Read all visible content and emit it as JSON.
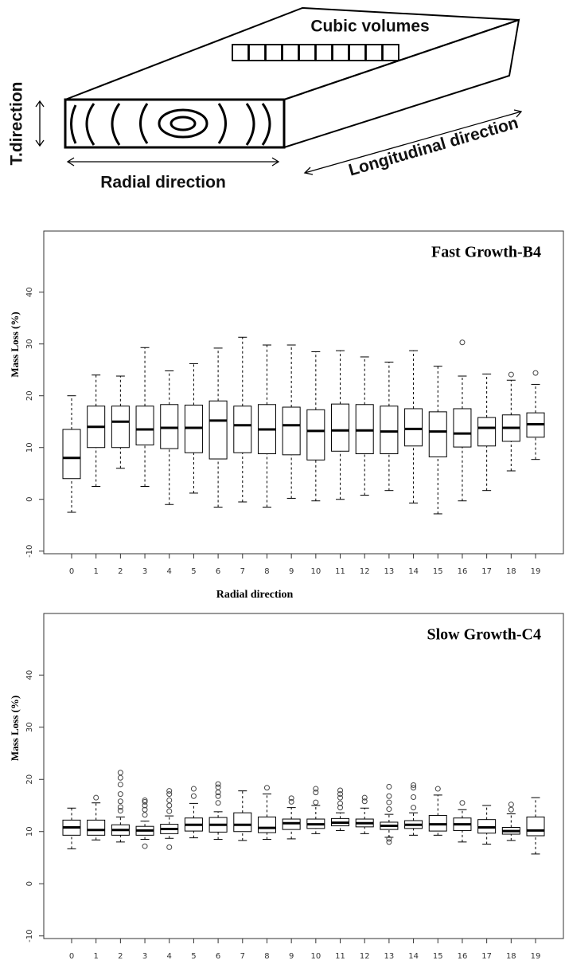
{
  "diagram": {
    "cubic_label": "Cubic volumes",
    "t_label": "T.direction",
    "radial_label": "Radial direction",
    "longitudinal_label": "Longitudinal direction"
  },
  "chart_data": [
    {
      "type": "box",
      "title": "Fast Growth-B4",
      "ylabel": "Mass Loss (%)",
      "xlabel": "Radial direction",
      "categories": [
        "0",
        "1",
        "2",
        "3",
        "4",
        "5",
        "6",
        "7",
        "8",
        "9",
        "10",
        "11",
        "12",
        "13",
        "14",
        "15",
        "16",
        "17",
        "18",
        "19"
      ],
      "min": [
        -2.5,
        2.5,
        6,
        2.5,
        -1,
        1.2,
        -1.5,
        -0.5,
        -1.5,
        0.2,
        -0.3,
        0,
        0.8,
        1.7,
        -0.7,
        -2.8,
        -0.3,
        1.7,
        5.5,
        7.7
      ],
      "q1": [
        4,
        10,
        10,
        10.5,
        9.8,
        9,
        7.8,
        9,
        8.8,
        8.6,
        7.6,
        9.3,
        8.8,
        8.8,
        10.3,
        8.2,
        10.1,
        10.3,
        11.2,
        12
      ],
      "median": [
        8,
        14,
        15,
        13.5,
        13.8,
        13.8,
        15.2,
        14.3,
        13.5,
        14.3,
        13.2,
        13.3,
        13.3,
        13.1,
        13.6,
        13.1,
        12.7,
        13.8,
        13.8,
        14.5
      ],
      "q3": [
        13.5,
        18,
        18,
        18,
        18.3,
        18.2,
        19,
        18,
        18.3,
        17.8,
        17.3,
        18.4,
        18.3,
        18,
        17.5,
        16.9,
        17.5,
        15.8,
        16.3,
        16.7
      ],
      "max": [
        20,
        24,
        23.8,
        29.3,
        24.8,
        26.2,
        29.2,
        31.3,
        29.8,
        29.8,
        28.5,
        28.7,
        27.5,
        26.5,
        28.7,
        25.7,
        23.8,
        24.2,
        23,
        22.2
      ],
      "outliers": [
        [],
        [],
        [],
        [],
        [],
        [],
        [],
        [],
        [],
        [],
        [],
        [],
        [],
        [],
        [],
        [],
        [
          30.3
        ],
        [],
        [
          24.1
        ],
        [
          24.4
        ]
      ],
      "ylim": [
        -10.5,
        51.8
      ],
      "yticks": [
        -10,
        0,
        10,
        20,
        30,
        40
      ],
      "color": "#000000"
    },
    {
      "type": "box",
      "title": "Slow Growth-C4",
      "ylabel": "Mass Loss (%)",
      "xlabel": "Radial direction",
      "categories": [
        "0",
        "1",
        "2",
        "3",
        "4",
        "5",
        "6",
        "7",
        "8",
        "9",
        "10",
        "11",
        "12",
        "13",
        "14",
        "15",
        "16",
        "17",
        "18",
        "19"
      ],
      "min": [
        6.7,
        8.4,
        8,
        8.5,
        8.7,
        8.8,
        8.5,
        8.3,
        8.5,
        8.6,
        9.6,
        10.2,
        9.6,
        8.9,
        9.3,
        9.3,
        8,
        7.6,
        8.3,
        5.7
      ],
      "q1": [
        9.3,
        9.3,
        9.3,
        9.3,
        9.6,
        10.1,
        9.9,
        10,
        9.8,
        10.4,
        10.6,
        11.1,
        10.9,
        10.4,
        10.6,
        10.1,
        10.2,
        9.7,
        9.5,
        9.2
      ],
      "median": [
        10.8,
        10.3,
        10.3,
        10.2,
        10.5,
        11.3,
        11.3,
        11.3,
        10.7,
        11.6,
        11.4,
        11.7,
        11.6,
        11.1,
        11.3,
        11.4,
        11.4,
        10.8,
        10.1,
        10.2
      ],
      "q3": [
        12.2,
        12.2,
        11.3,
        11,
        11.4,
        12.6,
        12.7,
        13.6,
        12.8,
        12.4,
        12.4,
        12.5,
        12.4,
        11.8,
        12.1,
        13.1,
        12.6,
        12.3,
        10.8,
        12.8
      ],
      "max": [
        14.5,
        15.5,
        12.8,
        12,
        13,
        15.4,
        13.8,
        17.8,
        17.2,
        14.6,
        15,
        13.6,
        14.5,
        13.3,
        13.6,
        17,
        14.2,
        15,
        13.4,
        16.5
      ],
      "outliers": [
        [],
        [
          16.5
        ],
        [
          14,
          14.7,
          15.8,
          17.2,
          19,
          20.3,
          21.3
        ],
        [
          7.2,
          13.2,
          14.2,
          15,
          15.7,
          16
        ],
        [
          7,
          13.9,
          15,
          16,
          17.2,
          17.8
        ],
        [
          16.8,
          18.2
        ],
        [
          15.5,
          16.8,
          17.5,
          18.5,
          19.1
        ],
        [],
        [
          18.4
        ],
        [
          15.7,
          16.4
        ],
        [
          15.6,
          17.5,
          18.2
        ],
        [
          14.6,
          15.4,
          16.5,
          17.2,
          17.9
        ],
        [
          15.8,
          16.5
        ],
        [
          8,
          8.6,
          14.3,
          15.6,
          16.8,
          18.6
        ],
        [
          14.6,
          16.6,
          18.4,
          18.9
        ],
        [
          18.2
        ],
        [
          15.5
        ],
        [],
        [
          14.2,
          15.2
        ],
        []
      ],
      "ylim": [
        -10.5,
        51.8
      ],
      "yticks": [
        -10,
        0,
        10,
        20,
        30,
        40
      ],
      "color": "#000000"
    }
  ]
}
